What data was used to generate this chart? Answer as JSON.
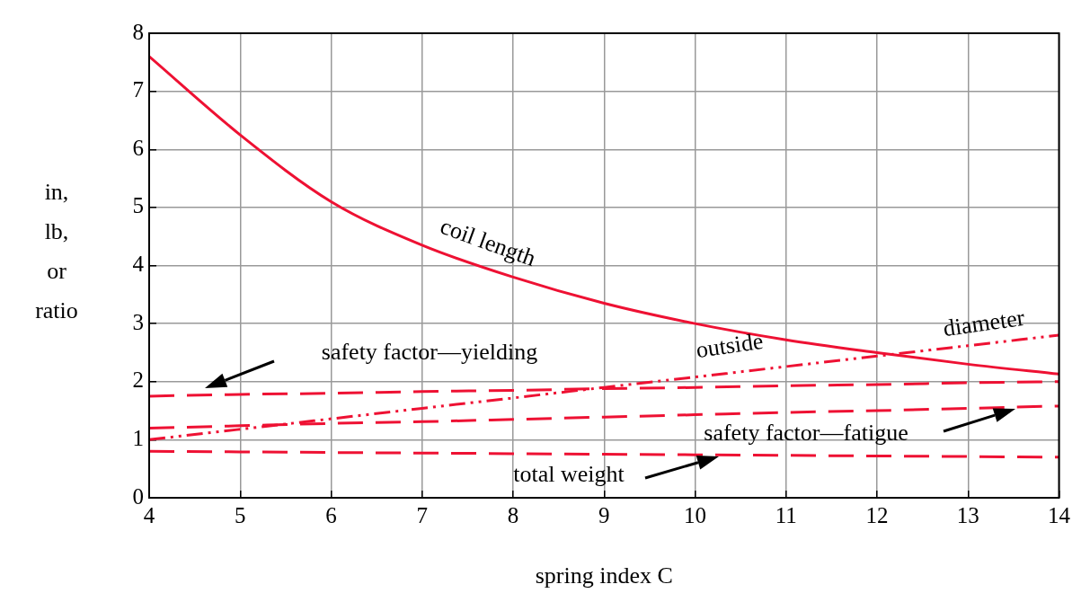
{
  "chart_data": {
    "type": "line",
    "xlabel": "spring index C",
    "ylabel": "in,\nlb,\nor\nratio",
    "x": [
      4,
      5,
      6,
      7,
      8,
      9,
      10,
      11,
      12,
      13,
      14
    ],
    "xlim": [
      4,
      14
    ],
    "xticks": [
      4,
      5,
      6,
      7,
      8,
      9,
      10,
      11,
      12,
      13,
      14
    ],
    "ylim": [
      0,
      8
    ],
    "yticks": [
      0,
      1,
      2,
      3,
      4,
      5,
      6,
      7,
      8
    ],
    "grid": true,
    "legend": false,
    "marker": "none",
    "series": [
      {
        "color": "#ee1133",
        "line_style": "solid",
        "values": [
          7.6,
          6.25,
          5.1,
          4.35,
          3.8,
          3.35,
          3.0,
          2.72,
          2.5,
          2.3,
          2.13
        ]
      },
      {
        "color": "#ee1133",
        "line_style": "dotted",
        "values": [
          1.0,
          1.18,
          1.36,
          1.54,
          1.72,
          1.9,
          2.08,
          2.26,
          2.44,
          2.62,
          2.8
        ]
      },
      {
        "color": "#ee1133",
        "line_style": "dashed",
        "values": [
          1.75,
          1.78,
          1.8,
          1.83,
          1.85,
          1.88,
          1.9,
          1.93,
          1.95,
          1.98,
          2.0
        ]
      },
      {
        "color": "#ee1133",
        "line_style": "dashed",
        "values": [
          1.2,
          1.24,
          1.28,
          1.31,
          1.35,
          1.39,
          1.43,
          1.47,
          1.5,
          1.54,
          1.58
        ]
      },
      {
        "color": "#ee1133",
        "line_style": "dashed",
        "values": [
          0.8,
          0.79,
          0.78,
          0.77,
          0.76,
          0.75,
          0.74,
          0.73,
          0.72,
          0.71,
          0.7
        ]
      }
    ],
    "annotations": [
      "coil length",
      "outside",
      "diameter",
      "safety factor—yielding",
      "safety factor—fatigue",
      "total weight"
    ]
  }
}
